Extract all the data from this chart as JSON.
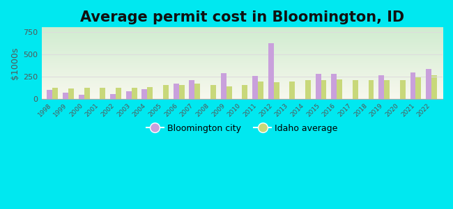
{
  "title": "Average permit cost in Bloomington, ID",
  "ylabel": "$1000s",
  "years": [
    1998,
    1999,
    2000,
    2001,
    2002,
    2003,
    2004,
    2005,
    2006,
    2007,
    2008,
    2009,
    2010,
    2011,
    2012,
    2013,
    2014,
    2015,
    2016,
    2017,
    2018,
    2019,
    2020,
    2021,
    2022
  ],
  "bloomington": [
    100,
    75,
    45,
    null,
    60,
    90,
    110,
    null,
    175,
    215,
    null,
    290,
    null,
    255,
    620,
    null,
    null,
    280,
    285,
    null,
    null,
    265,
    null,
    295,
    340
  ],
  "idaho": [
    125,
    120,
    130,
    125,
    130,
    130,
    135,
    155,
    155,
    175,
    160,
    140,
    160,
    195,
    185,
    195,
    210,
    215,
    220,
    215,
    215,
    210,
    215,
    245,
    265
  ],
  "bar_color_bloomington": "#c9a0dc",
  "bar_color_idaho": "#c8d87a",
  "background_outer": "#00e8f0",
  "ylim": [
    0,
    800
  ],
  "yticks": [
    0,
    250,
    500,
    750
  ],
  "title_fontsize": 15,
  "legend_bloomington": "Bloomington city",
  "legend_idaho": "Idaho average",
  "grid_color": "#dddddd",
  "gradient_top": "#c8e6c9",
  "gradient_bottom": "#f5f5e8"
}
